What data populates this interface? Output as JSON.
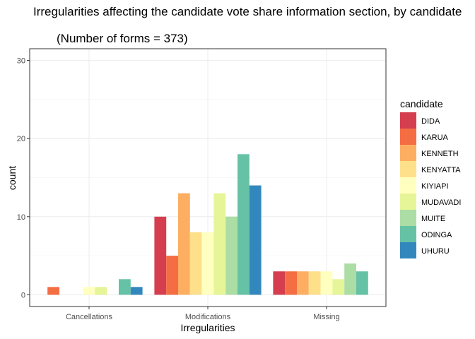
{
  "chart_data": {
    "type": "bar",
    "title": "Irregularities affecting the candidate vote share information section, by candidate",
    "subtitle": "(Number of forms = 373)",
    "xlabel": "Irregularities",
    "ylabel": "count",
    "ylim": [
      -1.5,
      31.5
    ],
    "yticks": [
      "0",
      "10",
      "20",
      "30"
    ],
    "categories": [
      "Cancellations",
      "Modifications",
      "Missing"
    ],
    "grid": true,
    "legend_title": "candidate",
    "legend_position": "right",
    "series": [
      {
        "name": "DIDA",
        "color": "#D53E4F",
        "values": [
          0,
          10,
          3
        ]
      },
      {
        "name": "KARUA",
        "color": "#F46D43",
        "values": [
          1,
          5,
          3
        ]
      },
      {
        "name": "KENNETH",
        "color": "#FDAE61",
        "values": [
          0,
          13,
          3
        ]
      },
      {
        "name": "KENYATTA",
        "color": "#FEE08B",
        "values": [
          0,
          8,
          3
        ]
      },
      {
        "name": "KIYIAPI",
        "color": "#FFFFBF",
        "values": [
          1,
          8,
          3
        ]
      },
      {
        "name": "MUDAVADI",
        "color": "#E6F598",
        "values": [
          1,
          13,
          2
        ]
      },
      {
        "name": "MUITE",
        "color": "#ABDDA4",
        "values": [
          0,
          10,
          4
        ]
      },
      {
        "name": "ODINGA",
        "color": "#66C2A5",
        "values": [
          2,
          18,
          3
        ]
      },
      {
        "name": "UHURU",
        "color": "#3288BD",
        "values": [
          1,
          14,
          0
        ]
      }
    ]
  }
}
